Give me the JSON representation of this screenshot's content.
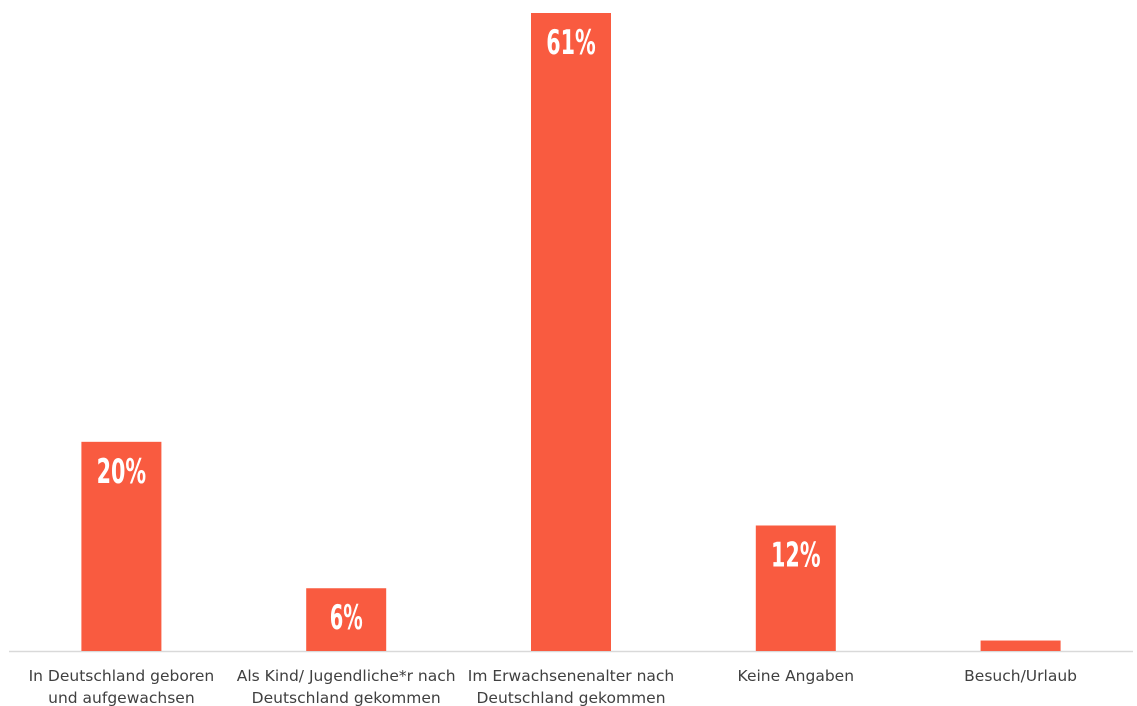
{
  "chart_data": {
    "type": "bar",
    "categories": [
      [
        "In Deutschland geboren",
        "und aufgewachsen"
      ],
      [
        "Als Kind/ Jugendliche*r nach",
        "Deutschland gekommen"
      ],
      [
        "Im Erwachsenenalter nach",
        "Deutschland gekommen"
      ],
      [
        "Keine Angaben"
      ],
      [
        "Besuch/Urlaub"
      ]
    ],
    "values": [
      20,
      6,
      61,
      12,
      1
    ],
    "data_labels": [
      "20%",
      "6%",
      "61%",
      "12%",
      "1%"
    ],
    "title": "",
    "xlabel": "",
    "ylabel": "",
    "ylim": [
      0,
      61
    ],
    "grid": false,
    "legend": "none",
    "colors": {
      "bar": "#F95B40",
      "axis": "#D9D9D9",
      "label_text": "#FFFFFF",
      "tick_text": "#404040"
    }
  }
}
